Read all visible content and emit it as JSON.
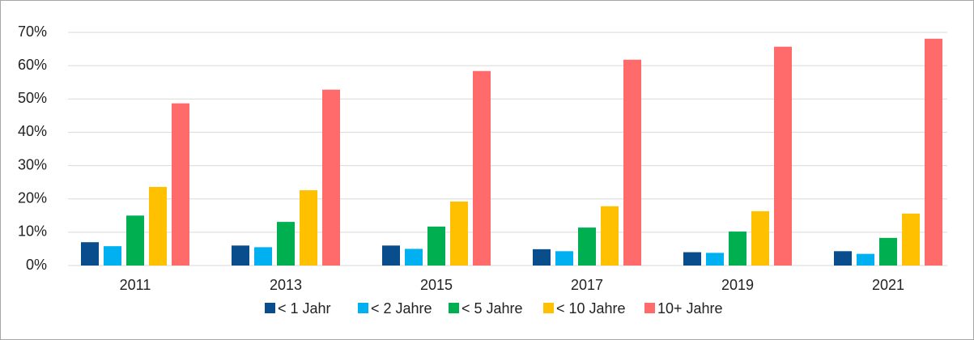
{
  "chart_data": {
    "type": "bar",
    "categories": [
      "2011",
      "2013",
      "2015",
      "2017",
      "2019",
      "2021"
    ],
    "series": [
      {
        "name": "< 1 Jahr",
        "color": "#0a4d8c",
        "values": [
          7.0,
          6.0,
          6.0,
          4.9,
          4.0,
          4.3
        ]
      },
      {
        "name": "< 2 Jahre",
        "color": "#00b0f0",
        "values": [
          5.8,
          5.5,
          5.0,
          4.3,
          3.8,
          3.5
        ]
      },
      {
        "name": "< 5 Jahre",
        "color": "#00b050",
        "values": [
          15.0,
          13.1,
          11.7,
          11.4,
          10.2,
          8.3
        ]
      },
      {
        "name": "< 10 Jahre",
        "color": "#ffc000",
        "values": [
          23.6,
          22.6,
          19.2,
          17.8,
          16.3,
          15.6
        ]
      },
      {
        "name": "10+ Jahre",
        "color": "#ff6b6b",
        "values": [
          48.7,
          52.8,
          58.4,
          61.8,
          65.7,
          68.1
        ]
      }
    ],
    "ylim": [
      0,
      70
    ],
    "yticks": [
      {
        "value": 0,
        "label": "0%"
      },
      {
        "value": 10,
        "label": "10%"
      },
      {
        "value": 20,
        "label": "20%"
      },
      {
        "value": 30,
        "label": "30%"
      },
      {
        "value": 40,
        "label": "40%"
      },
      {
        "value": 50,
        "label": "50%"
      },
      {
        "value": 60,
        "label": "60%"
      },
      {
        "value": 70,
        "label": "70%"
      }
    ],
    "grid": true,
    "legend": "bottom"
  }
}
